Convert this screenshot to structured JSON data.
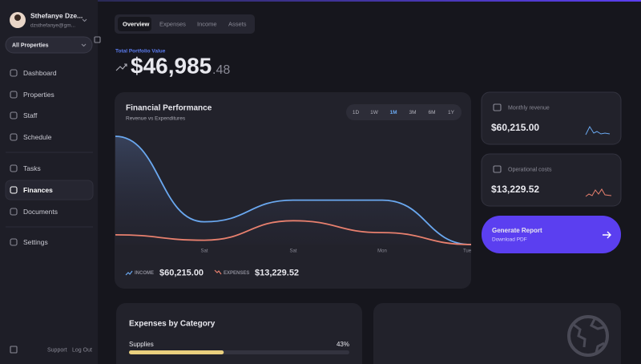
{
  "user": {
    "name": "Sthefanye Dze...",
    "email": "dzsthefanye@gm..."
  },
  "property_select": "All Properties",
  "nav": [
    "Dashboard",
    "Properties",
    "Staff",
    "Schedule",
    "Tasks",
    "Finances",
    "Documents",
    "Settings"
  ],
  "active_nav": 5,
  "footer": {
    "support": "Support",
    "logout": "Log Out"
  },
  "tabs": [
    "Overview",
    "Expenses",
    "Income",
    "Assets"
  ],
  "active_tab": 0,
  "portfolio": {
    "label": "Total Portfolio Value",
    "value": "$46,985",
    "cents": ".48"
  },
  "chart_data": {
    "type": "line",
    "title": "Financial Performance",
    "subtitle": "Revenue vs Expenditures",
    "ranges": [
      "1D",
      "1W",
      "1M",
      "3M",
      "6M",
      "1Y"
    ],
    "active_range": 2,
    "categories": [
      null,
      "Sat",
      "Sat",
      "Mon",
      "Tue"
    ],
    "ylim": [
      0,
      100
    ],
    "series": [
      {
        "name": "INCOME",
        "color": "#6aa8f0",
        "total": "$60,215.00",
        "values": [
          100,
          21,
          41,
          41,
          0
        ]
      },
      {
        "name": "EXPENSES",
        "color": "#e8806e",
        "total": "$13,229.52",
        "values": [
          9,
          4,
          22,
          11,
          0
        ]
      }
    ]
  },
  "cards": [
    {
      "label": "Monthly revenue",
      "value": "$60,215.00"
    },
    {
      "label": "Operational costs",
      "value": "$13,229.52"
    }
  ],
  "report": {
    "title": "Generate Report",
    "subtitle": "Download PDF"
  },
  "expenses_by_category": {
    "title": "Expenses by Category",
    "color": "#e9cf7e",
    "items": [
      {
        "name": "Supplies",
        "value": 43,
        "value_label": "43%"
      }
    ]
  }
}
